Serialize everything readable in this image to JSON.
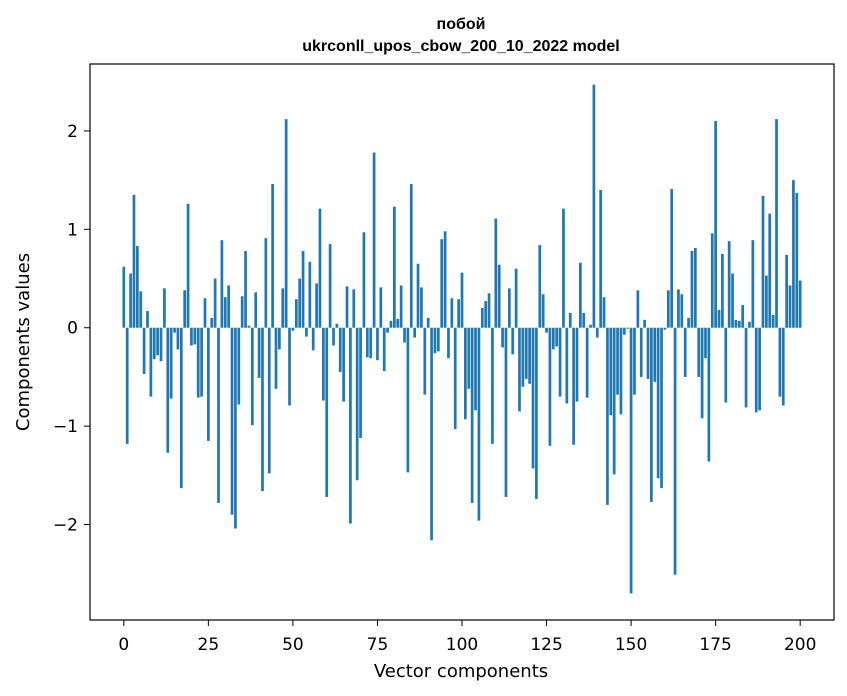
{
  "chart_data": {
    "type": "bar",
    "title_lines": [
      "побой",
      "ukrconll_upos_cbow_200_10_2022 model"
    ],
    "xlabel": "Vector components",
    "ylabel": "Components values",
    "xlim": [
      -10,
      210
    ],
    "ylim": [
      -2.97,
      2.68
    ],
    "x_ticks": [
      0,
      25,
      50,
      75,
      100,
      125,
      150,
      175,
      200
    ],
    "x_tick_labels": [
      "0",
      "25",
      "50",
      "75",
      "100",
      "125",
      "150",
      "175",
      "200"
    ],
    "y_ticks": [
      -2,
      -1,
      0,
      1,
      2
    ],
    "y_tick_labels": [
      "−2",
      "−1",
      "0",
      "1",
      "2"
    ],
    "grid": false,
    "bar_color": "#1f77b4",
    "values": [
      0.62,
      -1.18,
      0.55,
      1.35,
      0.83,
      0.37,
      -0.47,
      0.17,
      -0.7,
      -0.32,
      -0.28,
      -0.34,
      0.4,
      -1.27,
      -0.72,
      -0.05,
      -0.22,
      -1.63,
      0.38,
      1.26,
      -0.18,
      -0.17,
      -0.71,
      -0.7,
      0.3,
      -1.15,
      0.1,
      0.5,
      -1.78,
      0.89,
      0.31,
      0.43,
      -1.9,
      -2.04,
      -0.78,
      0.32,
      0.78,
      0.02,
      -0.99,
      0.36,
      -0.51,
      -1.66,
      0.91,
      -1.48,
      1.46,
      -0.62,
      -0.22,
      0.4,
      2.12,
      -0.79,
      -0.03,
      0.29,
      0.5,
      0.78,
      -0.09,
      0.67,
      -0.23,
      0.45,
      1.21,
      -0.74,
      -1.72,
      0.85,
      -0.18,
      0.04,
      -0.45,
      -0.75,
      0.42,
      -1.99,
      0.39,
      -1.55,
      -1.12,
      0.97,
      -0.3,
      -0.31,
      1.78,
      -0.33,
      0.41,
      -0.44,
      -0.05,
      0.07,
      1.23,
      0.09,
      0.43,
      -0.15,
      -1.47,
      1.46,
      -0.1,
      0.65,
      0.41,
      -0.68,
      0.1,
      -2.16,
      -0.26,
      -0.24,
      0.9,
      0.98,
      -0.31,
      0.3,
      -1.03,
      0.29,
      0.56,
      -0.93,
      -0.62,
      -1.78,
      -0.84,
      -1.96,
      0.2,
      0.27,
      0.35,
      -1.18,
      1.11,
      0.64,
      -0.2,
      -1.72,
      0.4,
      -0.27,
      0.6,
      -0.85,
      -0.6,
      -0.52,
      -0.57,
      -1.43,
      -1.74,
      0.84,
      0.34,
      -0.05,
      -1.2,
      -0.22,
      -0.19,
      -0.7,
      1.21,
      -0.77,
      0.15,
      -1.19,
      -0.75,
      0.66,
      0.15,
      -0.71,
      0.03,
      2.47,
      -0.1,
      1.4,
      0.31,
      -1.8,
      -0.89,
      -1.49,
      -0.68,
      -0.88,
      -0.07,
      -0.01,
      -2.7,
      -0.68,
      0.38,
      -0.5,
      0.08,
      -0.52,
      -1.77,
      -0.55,
      -1.53,
      -1.63,
      -0.02,
      0.38,
      1.41,
      -2.51,
      0.39,
      0.34,
      -0.5,
      0.1,
      0.78,
      0.81,
      -0.5,
      -0.92,
      -0.31,
      -1.36,
      0.96,
      2.1,
      0.18,
      0.75,
      -0.76,
      0.88,
      0.55,
      0.08,
      0.07,
      0.23,
      -0.81,
      0.06,
      0.89,
      -0.86,
      -0.84,
      1.34,
      0.53,
      1.16,
      0.13,
      2.12,
      -0.7,
      -0.79,
      0.74,
      0.43,
      1.5,
      1.37,
      0.48
    ]
  }
}
